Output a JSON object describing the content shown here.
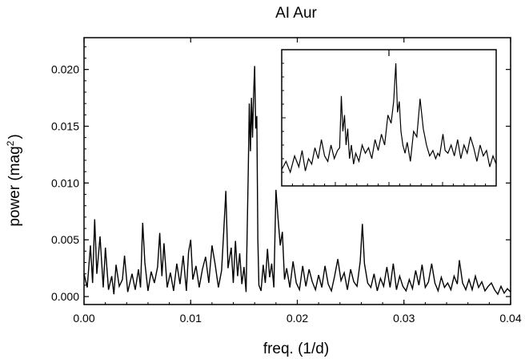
{
  "chart_data": {
    "type": "line",
    "title": "AI Aur",
    "xlabel": "freq. (1/d)",
    "ylabel": "power (mag",
    "ylabel_sup": "2",
    "ylabel_close": ")",
    "xlim": [
      0,
      0.04
    ],
    "ylim": [
      -0.0007,
      0.0228
    ],
    "xticks": [
      0.0,
      0.01,
      0.02,
      0.03,
      0.04
    ],
    "xtick_labels": [
      "0.00",
      "0.01",
      "0.02",
      "0.03",
      "0.04"
    ],
    "yticks": [
      0.0,
      0.005,
      0.01,
      0.015,
      0.02
    ],
    "ytick_labels": [
      "0.000",
      "0.005",
      "0.010",
      "0.015",
      "0.020"
    ],
    "line_color": "#000000",
    "grid": false,
    "series": [
      {
        "x": [
          0.0,
          0.0003,
          0.0006,
          0.0008,
          0.001,
          0.0012,
          0.0015,
          0.0018,
          0.002,
          0.0023,
          0.0026,
          0.0028,
          0.003,
          0.0033,
          0.0036,
          0.0038,
          0.0041,
          0.0045,
          0.0048,
          0.0051,
          0.0053,
          0.0055,
          0.0057,
          0.006,
          0.0063,
          0.0066,
          0.0069,
          0.0071,
          0.0073,
          0.0075,
          0.0078,
          0.0081,
          0.0084,
          0.0087,
          0.009,
          0.0093,
          0.0096,
          0.0098,
          0.01,
          0.0102,
          0.0105,
          0.0108,
          0.0111,
          0.0114,
          0.0117,
          0.012,
          0.0123,
          0.0126,
          0.0129,
          0.0131,
          0.0133,
          0.0135,
          0.0138,
          0.014,
          0.0142,
          0.0144,
          0.0146,
          0.0148,
          0.015,
          0.0152,
          0.0154,
          0.0155,
          0.0156,
          0.0157,
          0.0158,
          0.0159,
          0.016,
          0.0161,
          0.0162,
          0.0163,
          0.0164,
          0.0166,
          0.0168,
          0.017,
          0.0172,
          0.0174,
          0.0176,
          0.0178,
          0.018,
          0.0182,
          0.0184,
          0.0186,
          0.0188,
          0.019,
          0.0193,
          0.0196,
          0.0199,
          0.0202,
          0.0205,
          0.0208,
          0.0211,
          0.0214,
          0.0217,
          0.022,
          0.0223,
          0.0226,
          0.0229,
          0.0232,
          0.0235,
          0.0238,
          0.0241,
          0.0244,
          0.0247,
          0.025,
          0.0253,
          0.0256,
          0.0259,
          0.0261,
          0.0263,
          0.0266,
          0.0269,
          0.0272,
          0.0275,
          0.0278,
          0.0281,
          0.0284,
          0.0287,
          0.029,
          0.0293,
          0.0296,
          0.0299,
          0.0302,
          0.0305,
          0.0308,
          0.0311,
          0.0314,
          0.0317,
          0.032,
          0.0323,
          0.0326,
          0.0329,
          0.0332,
          0.0335,
          0.0338,
          0.0341,
          0.0344,
          0.0347,
          0.035,
          0.0352,
          0.0355,
          0.0358,
          0.0361,
          0.0364,
          0.0367,
          0.037,
          0.0373,
          0.0376,
          0.0379,
          0.0382,
          0.0385,
          0.0388,
          0.0391,
          0.0394,
          0.0397,
          0.04
        ],
        "y": [
          0.002,
          0.0008,
          0.0045,
          0.0012,
          0.0068,
          0.002,
          0.0053,
          0.0008,
          0.0043,
          0.0006,
          0.0018,
          0.0002,
          0.0028,
          0.0009,
          0.0015,
          0.0036,
          0.0004,
          0.002,
          0.0006,
          0.0024,
          0.0008,
          0.0065,
          0.003,
          0.0005,
          0.0022,
          0.0012,
          0.0026,
          0.0056,
          0.0018,
          0.0047,
          0.0008,
          0.0021,
          0.0005,
          0.0029,
          0.0011,
          0.0036,
          0.0005,
          0.0039,
          0.005,
          0.0015,
          0.0027,
          0.0008,
          0.0024,
          0.0035,
          0.0012,
          0.0045,
          0.0028,
          0.0008,
          0.0023,
          0.0058,
          0.0093,
          0.0025,
          0.0043,
          0.0012,
          0.0049,
          0.0018,
          0.0038,
          0.0011,
          0.0026,
          0.0004,
          0.011,
          0.017,
          0.0128,
          0.0175,
          0.014,
          0.0178,
          0.0203,
          0.0148,
          0.0159,
          0.005,
          0.001,
          0.0005,
          0.0028,
          0.0012,
          0.0042,
          0.0017,
          0.0029,
          0.0008,
          0.0094,
          0.0068,
          0.0045,
          0.0057,
          0.0015,
          0.0025,
          0.0008,
          0.0031,
          0.0012,
          0.0006,
          0.0027,
          0.0009,
          0.0024,
          0.0013,
          0.0006,
          0.0019,
          0.0008,
          0.0027,
          0.0011,
          0.0005,
          0.0018,
          0.0033,
          0.0014,
          0.0021,
          0.0006,
          0.0024,
          0.0013,
          0.0009,
          0.0031,
          0.0064,
          0.0029,
          0.0012,
          0.0008,
          0.002,
          0.0005,
          0.0016,
          0.0009,
          0.0026,
          0.0008,
          0.0029,
          0.0006,
          0.0018,
          0.0009,
          0.0005,
          0.0015,
          0.0007,
          0.0023,
          0.001,
          0.0028,
          0.0008,
          0.0013,
          0.0029,
          0.0012,
          0.0005,
          0.0017,
          0.0008,
          0.0012,
          0.0006,
          0.0018,
          0.0011,
          0.0032,
          0.0012,
          0.0006,
          0.0015,
          0.0006,
          0.0018,
          0.0008,
          0.0013,
          0.0005,
          0.0009,
          0.0012,
          0.0006,
          0.0002,
          0.0009,
          0.0003,
          0.0007,
          0.0004
        ]
      }
    ],
    "inset": {
      "x": [
        0.0,
        0.002,
        0.004,
        0.006,
        0.008,
        0.0095,
        0.011,
        0.0125,
        0.014,
        0.0155,
        0.017,
        0.0185,
        0.02,
        0.0215,
        0.023,
        0.0245,
        0.026,
        0.027,
        0.0278,
        0.0285,
        0.0293,
        0.03,
        0.0308,
        0.0316,
        0.0325,
        0.0335,
        0.0345,
        0.036,
        0.0375,
        0.039,
        0.0405,
        0.042,
        0.0435,
        0.045,
        0.0465,
        0.048,
        0.0495,
        0.051,
        0.0522,
        0.0532,
        0.054,
        0.0548,
        0.0556,
        0.0565,
        0.0575,
        0.0585,
        0.06,
        0.0615,
        0.063,
        0.0645,
        0.066,
        0.0675,
        0.069,
        0.0705,
        0.0718,
        0.0728,
        0.0736,
        0.0744,
        0.0752,
        0.0762,
        0.0775,
        0.079,
        0.0805,
        0.082,
        0.0835,
        0.085,
        0.0865,
        0.088,
        0.0895,
        0.091,
        0.0925,
        0.094,
        0.0955,
        0.097,
        0.0985,
        0.1
      ],
      "y": [
        0.12,
        0.18,
        0.1,
        0.22,
        0.14,
        0.26,
        0.11,
        0.2,
        0.16,
        0.28,
        0.2,
        0.34,
        0.22,
        0.18,
        0.3,
        0.2,
        0.26,
        0.28,
        0.66,
        0.4,
        0.52,
        0.3,
        0.42,
        0.2,
        0.3,
        0.16,
        0.24,
        0.18,
        0.3,
        0.24,
        0.28,
        0.2,
        0.34,
        0.26,
        0.38,
        0.3,
        0.52,
        0.46,
        0.62,
        0.9,
        0.54,
        0.62,
        0.4,
        0.3,
        0.24,
        0.32,
        0.18,
        0.4,
        0.36,
        0.64,
        0.42,
        0.3,
        0.22,
        0.26,
        0.2,
        0.24,
        0.22,
        0.3,
        0.38,
        0.26,
        0.24,
        0.3,
        0.22,
        0.34,
        0.2,
        0.3,
        0.24,
        0.36,
        0.28,
        0.18,
        0.3,
        0.22,
        0.26,
        0.14,
        0.22,
        0.16
      ]
    }
  }
}
